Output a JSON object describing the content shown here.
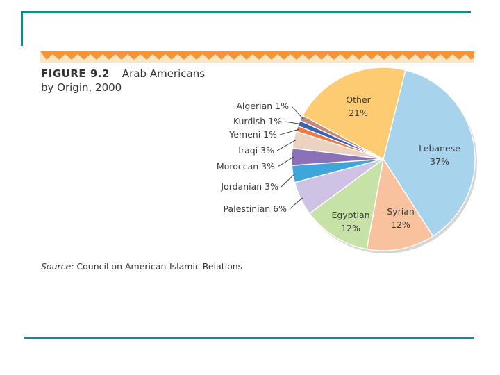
{
  "figure": {
    "number_label": "FIGURE 9.2",
    "title_line1": "Arab Americans",
    "title_line2": "by Origin, 2000"
  },
  "source": {
    "label": "Source:",
    "text": "Council on American-Islamic Relations"
  },
  "colors": {
    "accent_line": "#14888c",
    "zigzag_orange": "#f0963c",
    "zigzag_cream": "#fbe6c4"
  },
  "chart_data": {
    "type": "pie",
    "title": "Arab Americans by Origin, 2000",
    "units": "percent",
    "slices": [
      {
        "name": "Lebanese",
        "value": 37,
        "label": "37%",
        "color": "#a8d3ec"
      },
      {
        "name": "Syrian",
        "value": 12,
        "label": "12%",
        "color": "#f8c29e"
      },
      {
        "name": "Egyptian",
        "value": 12,
        "label": "12%",
        "color": "#c7e2a6"
      },
      {
        "name": "Palestinian",
        "value": 6,
        "label": "6%",
        "color": "#cfc2e4"
      },
      {
        "name": "Jordanian",
        "value": 3,
        "label": "3%",
        "color": "#3fa6dc"
      },
      {
        "name": "Moroccan",
        "value": 3,
        "label": "3%",
        "color": "#8b72b8"
      },
      {
        "name": "Iraqi",
        "value": 3,
        "label": "3%",
        "color": "#ecd3c1"
      },
      {
        "name": "Yemeni",
        "value": 1,
        "label": "1%",
        "color": "#ee7b43"
      },
      {
        "name": "Kurdish",
        "value": 1,
        "label": "1%",
        "color": "#3a64b0"
      },
      {
        "name": "Algerian",
        "value": 1,
        "label": "1%",
        "color": "#c08a7c"
      },
      {
        "name": "Other",
        "value": 21,
        "label": "21%",
        "color": "#fccb72"
      }
    ]
  }
}
